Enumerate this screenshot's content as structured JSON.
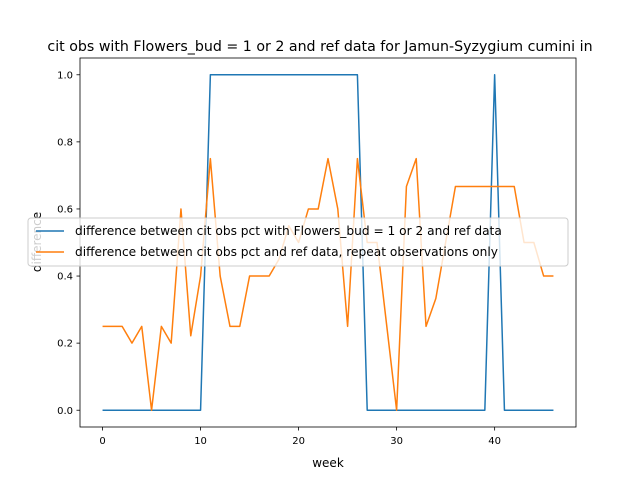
{
  "chart_data": {
    "type": "line",
    "title": "cit obs with Flowers_bud = 1 or 2 and ref data for Jamun-Syzygium cumini in",
    "xlabel": "week",
    "ylabel": "difference",
    "xlim": [
      -2.3,
      48.3
    ],
    "ylim": [
      -0.05,
      1.05
    ],
    "x_ticks": [
      0,
      10,
      20,
      30,
      40
    ],
    "y_ticks": [
      0.0,
      0.2,
      0.4,
      0.6,
      0.8,
      1.0
    ],
    "x_tick_labels": [
      "0",
      "10",
      "20",
      "30",
      "40"
    ],
    "y_tick_labels": [
      "0.0",
      "0.2",
      "0.4",
      "0.6",
      "0.8",
      "1.0"
    ],
    "legend_position": "center-right",
    "grid": false,
    "series": [
      {
        "name": "difference between cit obs pct with Flowers_bud = 1 or 2 and ref data",
        "color": "#1f77b4",
        "x": [
          0,
          1,
          2,
          3,
          4,
          5,
          6,
          7,
          8,
          9,
          10,
          11,
          12,
          13,
          14,
          15,
          16,
          17,
          18,
          19,
          20,
          21,
          22,
          23,
          24,
          25,
          26,
          27,
          28,
          29,
          30,
          31,
          32,
          33,
          34,
          35,
          36,
          37,
          38,
          39,
          40,
          41,
          42,
          43,
          44,
          45,
          46
        ],
        "values": [
          0,
          0,
          0,
          0,
          0,
          0,
          0,
          0,
          0,
          0,
          0,
          1,
          1,
          1,
          1,
          1,
          1,
          1,
          1,
          1,
          1,
          1,
          1,
          1,
          1,
          1,
          1,
          0,
          0,
          0,
          0,
          0,
          0,
          0,
          0,
          0,
          0,
          0,
          0,
          0,
          1,
          0,
          0,
          0,
          0,
          0,
          0
        ]
      },
      {
        "name": "difference between cit obs pct and ref data, repeat observations only",
        "color": "#ff7f0e",
        "x": [
          0,
          1,
          2,
          3,
          4,
          5,
          6,
          7,
          8,
          9,
          10,
          11,
          12,
          13,
          14,
          15,
          16,
          17,
          18,
          19,
          20,
          21,
          22,
          23,
          24,
          25,
          26,
          27,
          28,
          29,
          30,
          31,
          32,
          33,
          34,
          35,
          36,
          37,
          38,
          39,
          40,
          41,
          42,
          43,
          44,
          45,
          46
        ],
        "values": [
          0.25,
          0.25,
          0.25,
          0.2,
          0.25,
          0.0,
          0.25,
          0.2,
          0.6,
          0.222,
          0.4,
          0.75,
          0.4,
          0.25,
          0.25,
          0.4,
          0.4,
          0.4,
          0.45,
          0.55,
          0.5,
          0.6,
          0.6,
          0.75,
          0.6,
          0.25,
          0.75,
          0.5,
          0.5,
          0.25,
          0.0,
          0.667,
          0.75,
          0.25,
          0.333,
          0.5,
          0.667,
          0.667,
          0.667,
          0.667,
          0.667,
          0.667,
          0.667,
          0.5,
          0.5,
          0.4,
          0.4
        ]
      }
    ]
  }
}
